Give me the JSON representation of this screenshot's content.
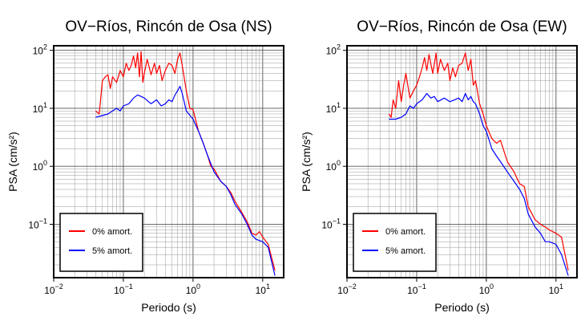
{
  "chart_data": [
    {
      "type": "line",
      "title": "OV−Ríos, Rincón de Osa (NS)",
      "xlabel": "Periodo (s)",
      "ylabel": "PSA (cm/s²)",
      "xscale": "log",
      "yscale": "log",
      "xlim": [
        0.01,
        20
      ],
      "ylim": [
        0.012,
        120
      ],
      "xticks": [
        {
          "v": 0.01,
          "m": "10",
          "e": "−2"
        },
        {
          "v": 0.1,
          "m": "10",
          "e": "−1"
        },
        {
          "v": 1,
          "m": "10",
          "e": "0"
        },
        {
          "v": 10,
          "m": "10",
          "e": "1"
        }
      ],
      "yticks": [
        {
          "v": 0.1,
          "m": "10",
          "e": "−1"
        },
        {
          "v": 1,
          "m": "10",
          "e": "0"
        },
        {
          "v": 10,
          "m": "10",
          "e": "1"
        },
        {
          "v": 100,
          "m": "10",
          "e": "2"
        }
      ],
      "grid": true,
      "legend_position": "bottom-left",
      "series": [
        {
          "name": "0% amort.",
          "color": "#ff0000",
          "x": [
            0.04,
            0.045,
            0.05,
            0.055,
            0.06,
            0.065,
            0.07,
            0.08,
            0.09,
            0.1,
            0.11,
            0.12,
            0.13,
            0.14,
            0.15,
            0.16,
            0.17,
            0.18,
            0.19,
            0.2,
            0.22,
            0.25,
            0.28,
            0.3,
            0.33,
            0.36,
            0.4,
            0.45,
            0.5,
            0.55,
            0.6,
            0.65,
            0.7,
            0.8,
            0.9,
            1.0,
            1.2,
            1.4,
            1.6,
            1.8,
            2.0,
            2.5,
            3.0,
            3.5,
            4.0,
            5.0,
            6.0,
            7.0,
            8.0,
            9.0,
            10,
            12,
            15
          ],
          "y": [
            9,
            8,
            30,
            35,
            38,
            22,
            35,
            28,
            45,
            35,
            60,
            45,
            55,
            80,
            50,
            90,
            35,
            95,
            28,
            40,
            70,
            38,
            60,
            40,
            55,
            30,
            45,
            60,
            55,
            40,
            70,
            90,
            55,
            20,
            10,
            9.5,
            4,
            2.5,
            1.6,
            1.0,
            0.9,
            0.55,
            0.45,
            0.35,
            0.25,
            0.16,
            0.11,
            0.07,
            0.065,
            0.075,
            0.06,
            0.045,
            0.016
          ]
        },
        {
          "name": "5% amort.",
          "color": "#0000ff",
          "x": [
            0.04,
            0.05,
            0.06,
            0.07,
            0.08,
            0.09,
            0.1,
            0.12,
            0.14,
            0.16,
            0.18,
            0.2,
            0.25,
            0.3,
            0.35,
            0.4,
            0.45,
            0.5,
            0.55,
            0.6,
            0.65,
            0.7,
            0.8,
            1.0,
            1.2,
            1.4,
            1.6,
            2.0,
            2.5,
            3.0,
            3.5,
            4.0,
            5.0,
            6.0,
            7.0,
            8.0,
            10,
            12,
            15
          ],
          "y": [
            7,
            7.5,
            8,
            9,
            10,
            9,
            11,
            12,
            15,
            17,
            16,
            15,
            12,
            14,
            11,
            12,
            14,
            13,
            17,
            20,
            24,
            18,
            9,
            6.5,
            4,
            2.5,
            1.6,
            0.8,
            0.55,
            0.45,
            0.32,
            0.22,
            0.15,
            0.1,
            0.065,
            0.055,
            0.05,
            0.04,
            0.013
          ]
        }
      ]
    },
    {
      "type": "line",
      "title": "OV−Ríos, Rincón de Osa (EW)",
      "xlabel": "Periodo (s)",
      "ylabel": "PSA (cm/s²)",
      "xscale": "log",
      "yscale": "log",
      "xlim": [
        0.01,
        20
      ],
      "ylim": [
        0.012,
        120
      ],
      "xticks": [
        {
          "v": 0.01,
          "m": "10",
          "e": "−2"
        },
        {
          "v": 0.1,
          "m": "10",
          "e": "−1"
        },
        {
          "v": 1,
          "m": "10",
          "e": "0"
        },
        {
          "v": 10,
          "m": "10",
          "e": "1"
        }
      ],
      "yticks": [
        {
          "v": 0.1,
          "m": "10",
          "e": "−1"
        },
        {
          "v": 1,
          "m": "10",
          "e": "0"
        },
        {
          "v": 10,
          "m": "10",
          "e": "1"
        },
        {
          "v": 100,
          "m": "10",
          "e": "2"
        }
      ],
      "grid": true,
      "legend_position": "bottom-left",
      "series": [
        {
          "name": "0% amort.",
          "color": "#ff0000",
          "x": [
            0.04,
            0.043,
            0.046,
            0.05,
            0.055,
            0.06,
            0.065,
            0.07,
            0.08,
            0.09,
            0.1,
            0.11,
            0.12,
            0.13,
            0.14,
            0.15,
            0.17,
            0.19,
            0.2,
            0.22,
            0.25,
            0.28,
            0.3,
            0.33,
            0.36,
            0.4,
            0.45,
            0.5,
            0.55,
            0.6,
            0.65,
            0.7,
            0.8,
            0.9,
            1.0,
            1.2,
            1.4,
            1.6,
            2.0,
            2.5,
            3.0,
            3.5,
            4.0,
            5.0,
            6.0,
            7.0,
            8.0,
            10,
            12,
            15
          ],
          "y": [
            8,
            7,
            14,
            10,
            30,
            13,
            25,
            40,
            15,
            20,
            25,
            35,
            50,
            75,
            45,
            85,
            40,
            90,
            40,
            70,
            45,
            60,
            30,
            50,
            35,
            55,
            60,
            90,
            45,
            70,
            25,
            30,
            12,
            8,
            5,
            3,
            2.5,
            2.8,
            1.2,
            0.8,
            0.5,
            0.45,
            0.2,
            0.12,
            0.1,
            0.09,
            0.08,
            0.07,
            0.06,
            0.016
          ]
        },
        {
          "name": "5% amort.",
          "color": "#0000ff",
          "x": [
            0.04,
            0.05,
            0.06,
            0.07,
            0.08,
            0.09,
            0.1,
            0.12,
            0.14,
            0.16,
            0.18,
            0.2,
            0.25,
            0.3,
            0.35,
            0.4,
            0.45,
            0.5,
            0.55,
            0.6,
            0.65,
            0.7,
            0.8,
            0.9,
            1.0,
            1.2,
            1.4,
            1.6,
            2.0,
            2.5,
            3.0,
            3.5,
            4.0,
            5.0,
            6.0,
            7.0,
            8.0,
            10,
            12,
            15
          ],
          "y": [
            6.5,
            6.5,
            7,
            8,
            11,
            10,
            12,
            14,
            18,
            15,
            16,
            13,
            15,
            13,
            14,
            15,
            13,
            18,
            14,
            16,
            13,
            12,
            8,
            5,
            4,
            2,
            1.5,
            1.2,
            0.8,
            0.55,
            0.4,
            0.28,
            0.15,
            0.09,
            0.07,
            0.05,
            0.05,
            0.045,
            0.03,
            0.013
          ]
        }
      ]
    }
  ]
}
